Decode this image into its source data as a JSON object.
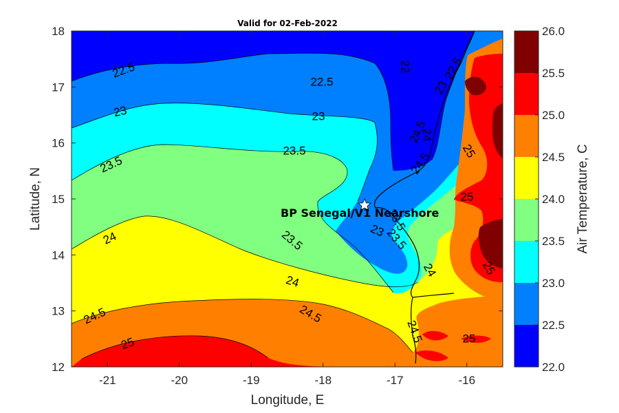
{
  "title": "Valid for 02-Feb-2022",
  "x_axis": {
    "label": "Longitude, E",
    "ticks": [
      "-21",
      "-20",
      "-19",
      "-18",
      "-17",
      "-16"
    ]
  },
  "y_axis": {
    "label": "Latitude, N",
    "ticks": [
      "12",
      "13",
      "14",
      "15",
      "16",
      "17",
      "18"
    ]
  },
  "colorbar": {
    "label": "Air Temperature, C",
    "ticks": [
      "22.0",
      "22.5",
      "23.0",
      "23.5",
      "24.0",
      "24.5",
      "25.0",
      "25.5",
      "26.0"
    ]
  },
  "site_label": "BP Senegal/V1 Nearshore",
  "contour_labels": [
    "22.5",
    "22.5",
    "22",
    "23",
    "23",
    "23.5",
    "23.5",
    "24",
    "24",
    "24",
    "24.5",
    "24.5",
    "25",
    "25",
    "25",
    "25",
    "25",
    "23.5",
    "23",
    "22.5",
    "23",
    "24.5",
    "24.5",
    "24.5",
    "23.5",
    "24",
    "23.5"
  ],
  "chart_data": {
    "type": "heatmap",
    "title": "Valid for 02-Feb-2022",
    "xlabel": "Longitude, E",
    "ylabel": "Latitude, N",
    "xlim": [
      -21.5,
      -15.5
    ],
    "ylim": [
      12,
      18
    ],
    "colorbar_label": "Air Temperature, C",
    "colorbar_range": [
      22.0,
      26.0
    ],
    "contour_interval": 0.5,
    "levels": [
      22.0,
      22.5,
      23.0,
      23.5,
      24.0,
      24.5,
      25.0,
      25.5,
      26.0
    ],
    "level_colors": [
      "#0000ff",
      "#0080ff",
      "#00ffff",
      "#80ff80",
      "#ffff00",
      "#ff8000",
      "#ff0000",
      "#800000"
    ],
    "site": {
      "name": "BP Senegal/V1 Nearshore",
      "lon": -17.42,
      "lat": 14.92
    }
  }
}
